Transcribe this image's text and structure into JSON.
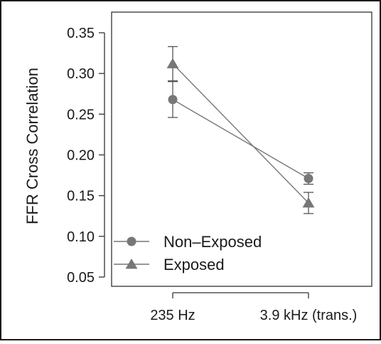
{
  "chart_data": {
    "type": "line",
    "title": "",
    "xlabel": "",
    "ylabel": "FFR Cross Correlation",
    "categories": [
      "235 Hz",
      "3.9 kHz (trans.)"
    ],
    "ylim": [
      0.05,
      0.35
    ],
    "yticks": [
      "0.05",
      "0.10",
      "0.15",
      "0.20",
      "0.25",
      "0.30",
      "0.35"
    ],
    "grid": false,
    "legend_position": "bottom-left",
    "series": [
      {
        "name": "Non–Exposed",
        "marker": "circle",
        "values": [
          0.268,
          0.171
        ],
        "error": [
          0.022,
          0.007
        ],
        "color": "#777777"
      },
      {
        "name": "Exposed",
        "marker": "triangle",
        "values": [
          0.312,
          0.141
        ],
        "error": [
          0.021,
          0.013
        ],
        "color": "#777777"
      }
    ]
  }
}
